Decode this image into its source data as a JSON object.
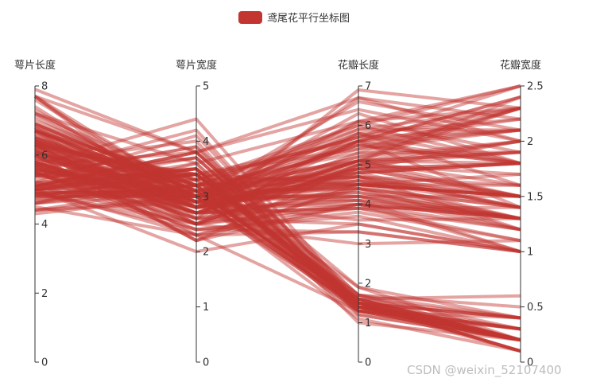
{
  "legend": {
    "label": "鸢尾花平行坐标图",
    "color": "#c23531"
  },
  "watermark": "CSDN @weixin_52107400",
  "chart_data": {
    "type": "parallel",
    "line_color": "#c23531",
    "axes": [
      {
        "name": "萼片长度",
        "min": 0,
        "max": 8,
        "ticks": [
          "0",
          "2",
          "4",
          "6",
          "8"
        ]
      },
      {
        "name": "萼片宽度",
        "min": 0,
        "max": 5,
        "ticks": [
          "0",
          "1",
          "2",
          "3",
          "4",
          "5"
        ]
      },
      {
        "name": "花瓣长度",
        "min": 0,
        "max": 7,
        "ticks": [
          "0",
          "1",
          "2",
          "3",
          "4",
          "5",
          "6",
          "7"
        ]
      },
      {
        "name": "花瓣宽度",
        "min": 0,
        "max": 2.5,
        "ticks": [
          "0",
          "0.5",
          "1",
          "1.5",
          "2",
          "2.5"
        ]
      }
    ],
    "series": [
      {
        "name": "鸢尾花平行坐标图",
        "data": [
          [
            5.1,
            3.5,
            1.4,
            0.2
          ],
          [
            4.9,
            3.0,
            1.4,
            0.2
          ],
          [
            4.7,
            3.2,
            1.3,
            0.2
          ],
          [
            4.6,
            3.1,
            1.5,
            0.2
          ],
          [
            5.0,
            3.6,
            1.4,
            0.2
          ],
          [
            5.4,
            3.9,
            1.7,
            0.4
          ],
          [
            4.6,
            3.4,
            1.4,
            0.3
          ],
          [
            5.0,
            3.4,
            1.5,
            0.2
          ],
          [
            4.4,
            2.9,
            1.4,
            0.2
          ],
          [
            4.9,
            3.1,
            1.5,
            0.1
          ],
          [
            5.4,
            3.7,
            1.5,
            0.2
          ],
          [
            4.8,
            3.4,
            1.6,
            0.2
          ],
          [
            4.8,
            3.0,
            1.4,
            0.1
          ],
          [
            4.3,
            3.0,
            1.1,
            0.1
          ],
          [
            5.8,
            4.0,
            1.2,
            0.2
          ],
          [
            5.7,
            4.4,
            1.5,
            0.4
          ],
          [
            5.4,
            3.9,
            1.3,
            0.4
          ],
          [
            5.1,
            3.5,
            1.4,
            0.3
          ],
          [
            5.7,
            3.8,
            1.7,
            0.3
          ],
          [
            5.1,
            3.8,
            1.5,
            0.3
          ],
          [
            5.4,
            3.4,
            1.7,
            0.2
          ],
          [
            5.1,
            3.7,
            1.5,
            0.4
          ],
          [
            4.6,
            3.6,
            1.0,
            0.2
          ],
          [
            5.1,
            3.3,
            1.7,
            0.5
          ],
          [
            4.8,
            3.4,
            1.9,
            0.2
          ],
          [
            5.0,
            3.0,
            1.6,
            0.2
          ],
          [
            5.0,
            3.4,
            1.6,
            0.4
          ],
          [
            5.2,
            3.5,
            1.5,
            0.2
          ],
          [
            5.2,
            3.4,
            1.4,
            0.2
          ],
          [
            4.7,
            3.2,
            1.6,
            0.2
          ],
          [
            4.8,
            3.1,
            1.6,
            0.2
          ],
          [
            5.4,
            3.4,
            1.5,
            0.4
          ],
          [
            5.2,
            4.1,
            1.5,
            0.1
          ],
          [
            5.5,
            4.2,
            1.4,
            0.2
          ],
          [
            4.9,
            3.1,
            1.5,
            0.1
          ],
          [
            5.0,
            3.2,
            1.2,
            0.2
          ],
          [
            5.5,
            3.5,
            1.3,
            0.2
          ],
          [
            4.9,
            3.1,
            1.5,
            0.1
          ],
          [
            4.4,
            3.0,
            1.3,
            0.2
          ],
          [
            5.1,
            3.4,
            1.5,
            0.2
          ],
          [
            5.0,
            3.5,
            1.3,
            0.3
          ],
          [
            4.5,
            2.3,
            1.3,
            0.3
          ],
          [
            4.4,
            3.2,
            1.3,
            0.2
          ],
          [
            5.0,
            3.5,
            1.6,
            0.6
          ],
          [
            5.1,
            3.8,
            1.9,
            0.4
          ],
          [
            4.8,
            3.0,
            1.4,
            0.3
          ],
          [
            5.1,
            3.8,
            1.6,
            0.2
          ],
          [
            4.6,
            3.2,
            1.4,
            0.2
          ],
          [
            5.3,
            3.7,
            1.5,
            0.2
          ],
          [
            5.0,
            3.3,
            1.4,
            0.2
          ],
          [
            7.0,
            3.2,
            4.7,
            1.4
          ],
          [
            6.4,
            3.2,
            4.5,
            1.5
          ],
          [
            6.9,
            3.1,
            4.9,
            1.5
          ],
          [
            5.5,
            2.3,
            4.0,
            1.3
          ],
          [
            6.5,
            2.8,
            4.6,
            1.5
          ],
          [
            5.7,
            2.8,
            4.5,
            1.3
          ],
          [
            6.3,
            3.3,
            4.7,
            1.6
          ],
          [
            4.9,
            2.4,
            3.3,
            1.0
          ],
          [
            6.6,
            2.9,
            4.6,
            1.3
          ],
          [
            5.2,
            2.7,
            3.9,
            1.4
          ],
          [
            5.0,
            2.0,
            3.5,
            1.0
          ],
          [
            5.9,
            3.0,
            4.2,
            1.5
          ],
          [
            6.0,
            2.2,
            4.0,
            1.0
          ],
          [
            6.1,
            2.9,
            4.7,
            1.4
          ],
          [
            5.6,
            2.9,
            3.6,
            1.3
          ],
          [
            6.7,
            3.1,
            4.4,
            1.4
          ],
          [
            5.6,
            3.0,
            4.5,
            1.5
          ],
          [
            5.8,
            2.7,
            4.1,
            1.0
          ],
          [
            6.2,
            2.2,
            4.5,
            1.5
          ],
          [
            5.6,
            2.5,
            3.9,
            1.1
          ],
          [
            5.9,
            3.2,
            4.8,
            1.8
          ],
          [
            6.1,
            2.8,
            4.0,
            1.3
          ],
          [
            6.3,
            2.5,
            4.9,
            1.5
          ],
          [
            6.1,
            2.8,
            4.7,
            1.2
          ],
          [
            6.4,
            2.9,
            4.3,
            1.3
          ],
          [
            6.6,
            3.0,
            4.4,
            1.4
          ],
          [
            6.8,
            2.8,
            4.8,
            1.4
          ],
          [
            6.7,
            3.0,
            5.0,
            1.7
          ],
          [
            6.0,
            2.9,
            4.5,
            1.5
          ],
          [
            5.7,
            2.6,
            3.5,
            1.0
          ],
          [
            5.5,
            2.4,
            3.8,
            1.1
          ],
          [
            5.5,
            2.4,
            3.7,
            1.0
          ],
          [
            5.8,
            2.7,
            3.9,
            1.2
          ],
          [
            6.0,
            2.7,
            5.1,
            1.6
          ],
          [
            5.4,
            3.0,
            4.5,
            1.5
          ],
          [
            6.0,
            3.4,
            4.5,
            1.6
          ],
          [
            6.7,
            3.1,
            4.7,
            1.5
          ],
          [
            6.3,
            2.3,
            4.4,
            1.3
          ],
          [
            5.6,
            3.0,
            4.1,
            1.3
          ],
          [
            5.5,
            2.5,
            4.0,
            1.3
          ],
          [
            5.5,
            2.6,
            4.4,
            1.2
          ],
          [
            6.1,
            3.0,
            4.6,
            1.4
          ],
          [
            5.8,
            2.6,
            4.0,
            1.2
          ],
          [
            5.0,
            2.3,
            3.3,
            1.0
          ],
          [
            5.6,
            2.7,
            4.2,
            1.3
          ],
          [
            5.7,
            3.0,
            4.2,
            1.2
          ],
          [
            5.7,
            2.9,
            4.2,
            1.3
          ],
          [
            6.2,
            2.9,
            4.3,
            1.3
          ],
          [
            5.1,
            2.5,
            3.0,
            1.1
          ],
          [
            5.7,
            2.8,
            4.1,
            1.3
          ],
          [
            6.3,
            3.3,
            6.0,
            2.5
          ],
          [
            5.8,
            2.7,
            5.1,
            1.9
          ],
          [
            7.1,
            3.0,
            5.9,
            2.1
          ],
          [
            6.3,
            2.9,
            5.6,
            1.8
          ],
          [
            6.5,
            3.0,
            5.8,
            2.2
          ],
          [
            7.6,
            3.0,
            6.6,
            2.1
          ],
          [
            4.9,
            2.5,
            4.5,
            1.7
          ],
          [
            7.3,
            2.9,
            6.3,
            1.8
          ],
          [
            6.7,
            2.5,
            5.8,
            1.8
          ],
          [
            7.2,
            3.6,
            6.1,
            2.5
          ],
          [
            6.5,
            3.2,
            5.1,
            2.0
          ],
          [
            6.4,
            2.7,
            5.3,
            1.9
          ],
          [
            6.8,
            3.0,
            5.5,
            2.1
          ],
          [
            5.7,
            2.5,
            5.0,
            2.0
          ],
          [
            5.8,
            2.8,
            5.1,
            2.4
          ],
          [
            6.4,
            3.2,
            5.3,
            2.3
          ],
          [
            6.5,
            3.0,
            5.5,
            1.8
          ],
          [
            7.7,
            3.8,
            6.7,
            2.2
          ],
          [
            7.7,
            2.6,
            6.9,
            2.3
          ],
          [
            6.0,
            2.2,
            5.0,
            1.5
          ],
          [
            6.9,
            3.2,
            5.7,
            2.3
          ],
          [
            5.6,
            2.8,
            4.9,
            2.0
          ],
          [
            7.7,
            2.8,
            6.7,
            2.0
          ],
          [
            6.3,
            2.7,
            4.9,
            1.8
          ],
          [
            6.7,
            3.3,
            5.7,
            2.1
          ],
          [
            7.2,
            3.2,
            6.0,
            1.8
          ],
          [
            6.2,
            2.8,
            4.8,
            1.8
          ],
          [
            6.1,
            3.0,
            4.9,
            1.8
          ],
          [
            6.4,
            2.8,
            5.6,
            2.1
          ],
          [
            7.2,
            3.0,
            5.8,
            1.6
          ],
          [
            7.4,
            2.8,
            6.1,
            1.9
          ],
          [
            7.9,
            3.8,
            6.4,
            2.0
          ],
          [
            6.4,
            2.8,
            5.6,
            2.2
          ],
          [
            6.3,
            2.8,
            5.1,
            1.5
          ],
          [
            6.1,
            2.6,
            5.6,
            1.4
          ],
          [
            7.7,
            3.0,
            6.1,
            2.3
          ],
          [
            6.3,
            3.4,
            5.6,
            2.4
          ],
          [
            6.4,
            3.1,
            5.5,
            1.8
          ],
          [
            6.0,
            3.0,
            4.8,
            1.8
          ],
          [
            6.9,
            3.1,
            5.4,
            2.1
          ],
          [
            6.7,
            3.1,
            5.6,
            2.4
          ],
          [
            6.9,
            3.1,
            5.1,
            2.3
          ],
          [
            5.8,
            2.7,
            5.1,
            1.9
          ],
          [
            6.8,
            3.2,
            5.9,
            2.3
          ],
          [
            6.7,
            3.3,
            5.7,
            2.5
          ],
          [
            6.7,
            3.0,
            5.2,
            2.3
          ],
          [
            6.3,
            2.5,
            5.0,
            1.9
          ],
          [
            6.5,
            3.0,
            5.2,
            2.0
          ],
          [
            6.2,
            3.4,
            5.4,
            2.3
          ],
          [
            5.9,
            3.0,
            5.1,
            1.8
          ]
        ]
      }
    ]
  }
}
